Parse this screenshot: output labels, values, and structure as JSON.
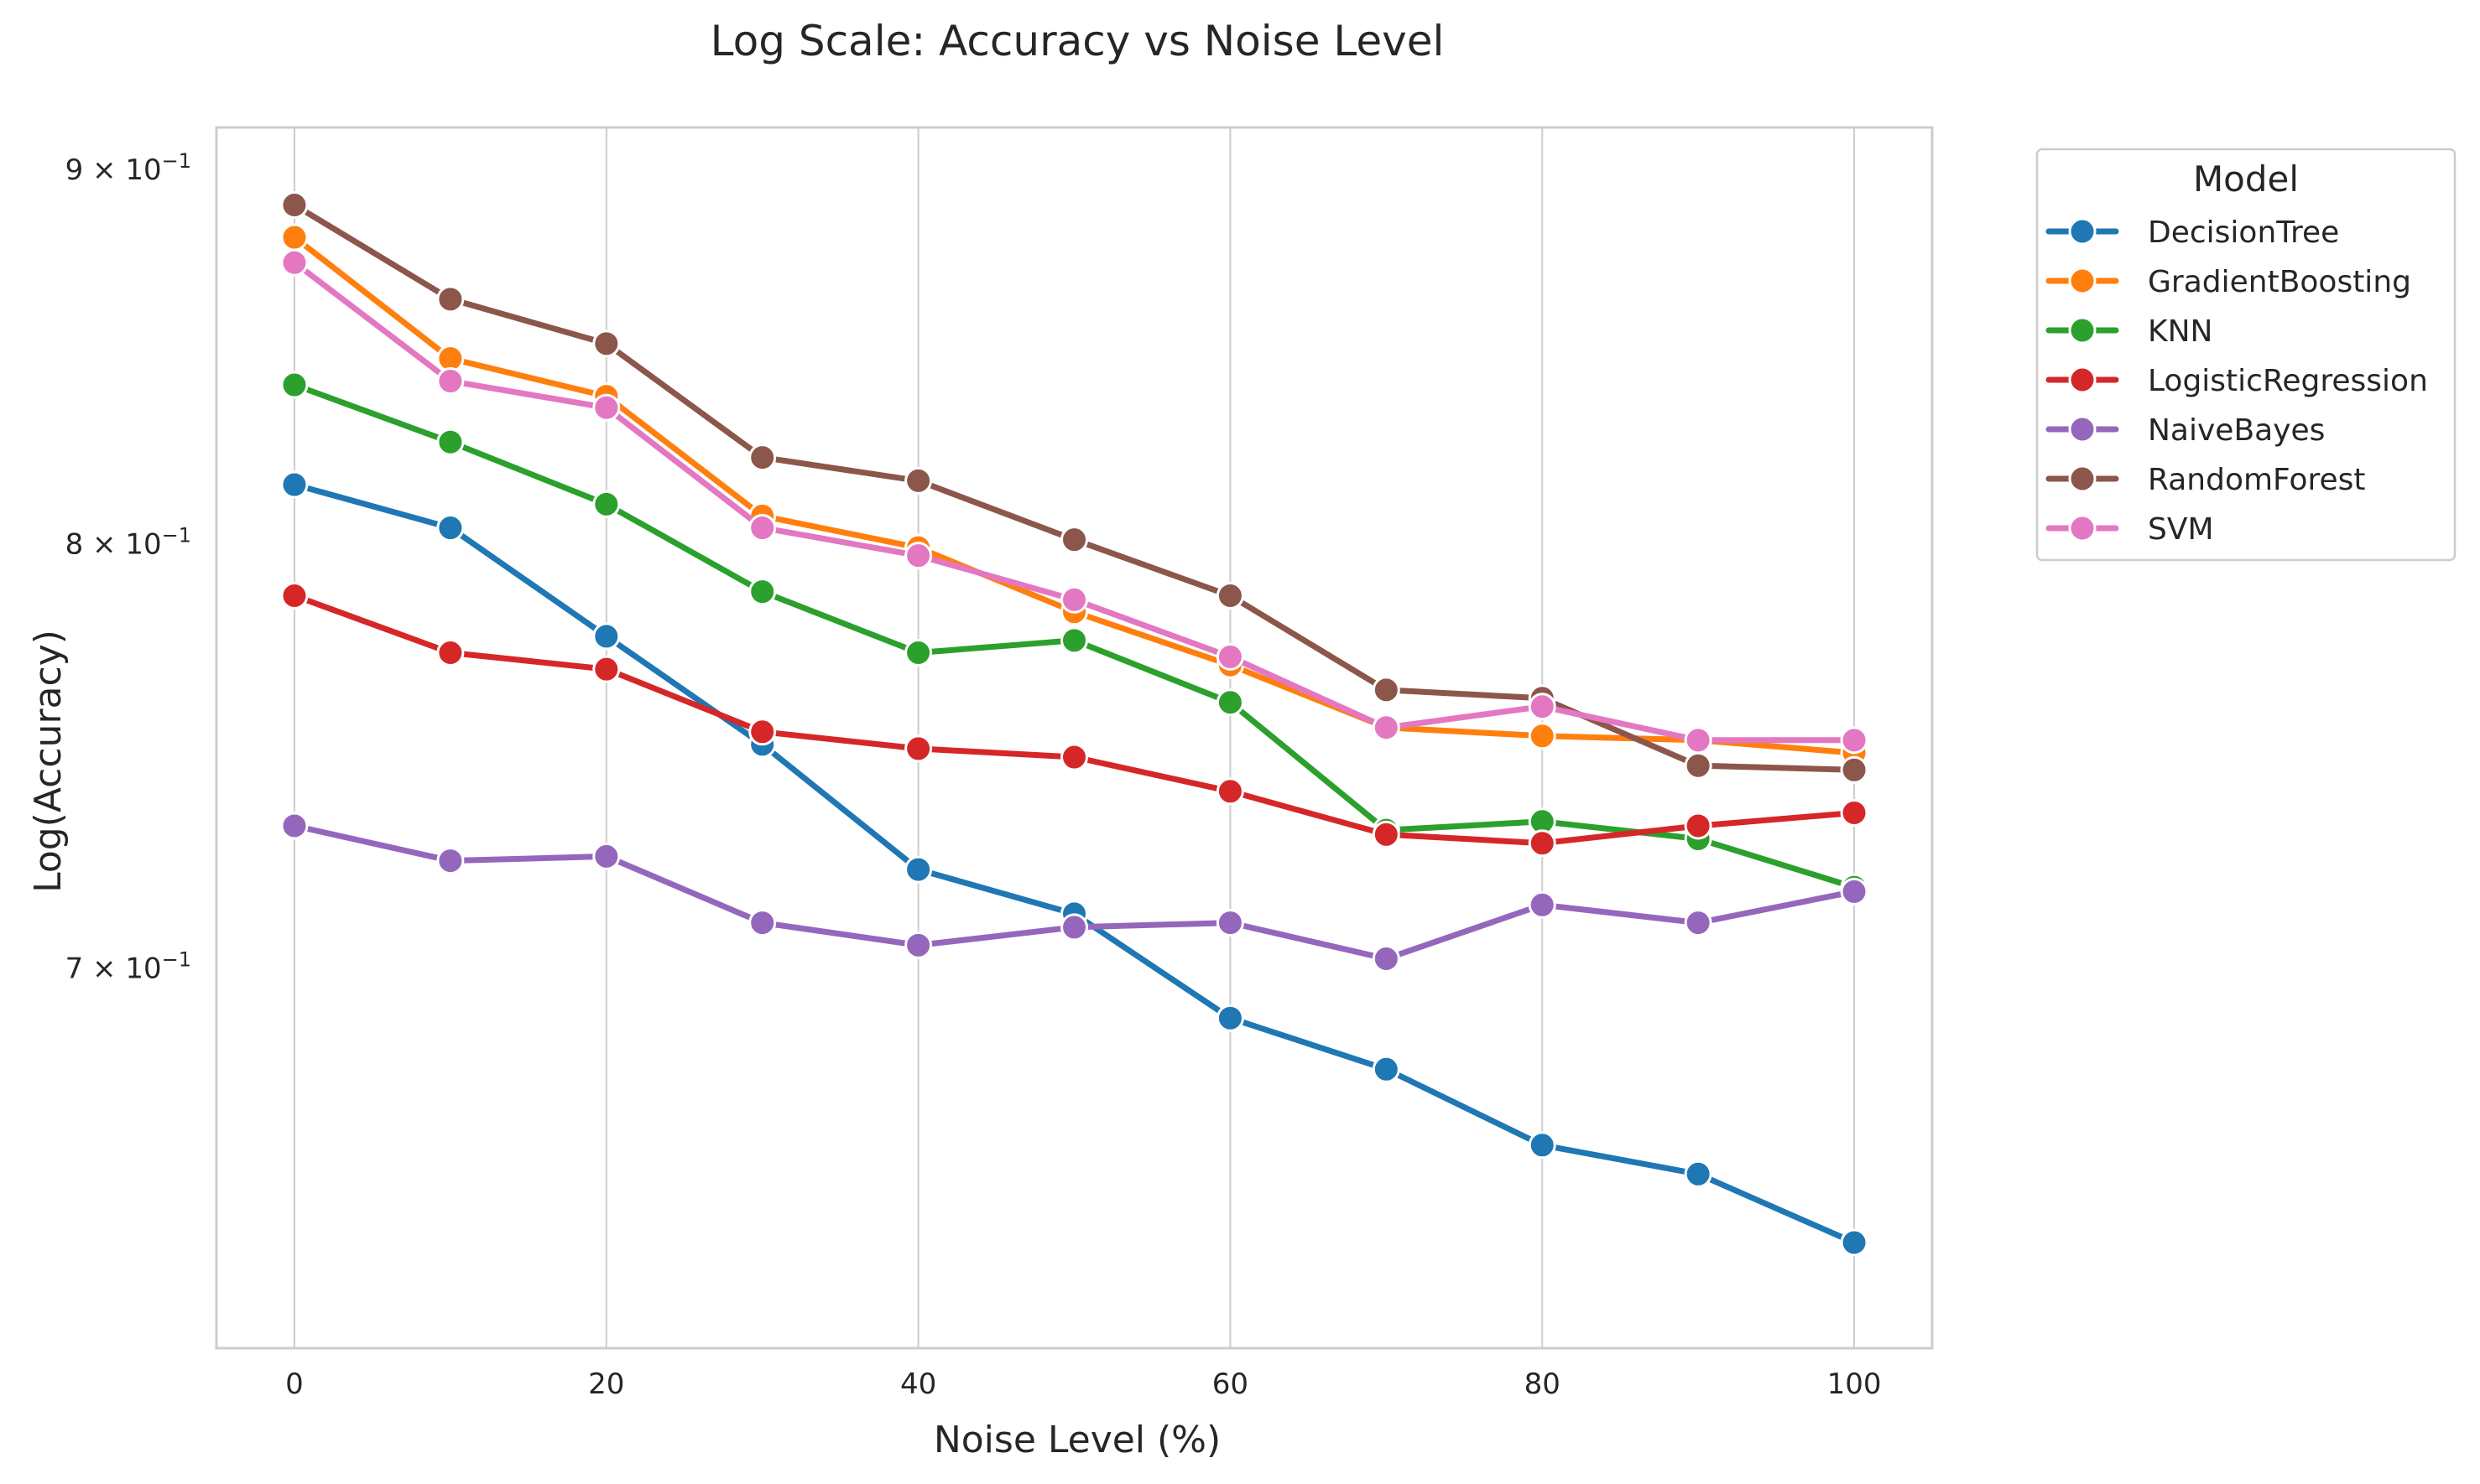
{
  "chart_data": {
    "type": "line",
    "title": "Log Scale: Accuracy vs Noise Level",
    "xlabel": "Noise Level (%)",
    "ylabel": "Log(Accuracy)",
    "yscale": "log",
    "x": [
      0,
      10,
      20,
      30,
      40,
      50,
      60,
      70,
      80,
      90,
      100
    ],
    "xlim": [
      -5,
      105
    ],
    "ylim": [
      0.621,
      0.912
    ],
    "x_ticks": [
      0,
      20,
      40,
      60,
      80,
      100
    ],
    "x_tick_labels": [
      "0",
      "20",
      "40",
      "60",
      "80",
      "100"
    ],
    "y_ticks": [
      0.9,
      0.8,
      0.7
    ],
    "y_tick_labels": [
      {
        "base": "9 × 10",
        "exp": "−1"
      },
      {
        "base": "8 × 10",
        "exp": "−1"
      },
      {
        "base": "7 × 10",
        "exp": "−1"
      }
    ],
    "grid": "vertical",
    "legend": {
      "title": "Model",
      "placement": "outside-top-right"
    },
    "series": [
      {
        "name": "DecisionTree",
        "color": "#1f77b4",
        "values": [
          0.815,
          0.804,
          0.777,
          0.751,
          0.722,
          0.712,
          0.689,
          0.678,
          0.662,
          0.656,
          0.642
        ]
      },
      {
        "name": "GradientBoosting",
        "color": "#ff7f0e",
        "values": [
          0.881,
          0.848,
          0.838,
          0.807,
          0.799,
          0.783,
          0.77,
          0.755,
          0.753,
          0.752,
          0.749
        ]
      },
      {
        "name": "KNN",
        "color": "#2ca02c",
        "values": [
          0.841,
          0.826,
          0.81,
          0.788,
          0.773,
          0.776,
          0.761,
          0.731,
          0.733,
          0.729,
          0.718
        ]
      },
      {
        "name": "LogisticRegression",
        "color": "#d62728",
        "values": [
          0.787,
          0.773,
          0.769,
          0.754,
          0.75,
          0.748,
          0.74,
          0.73,
          0.728,
          0.732,
          0.735
        ]
      },
      {
        "name": "NaiveBayes",
        "color": "#9467bd",
        "values": [
          0.732,
          0.724,
          0.725,
          0.71,
          0.705,
          0.709,
          0.71,
          0.702,
          0.714,
          0.71,
          0.717
        ]
      },
      {
        "name": "RandomForest",
        "color": "#8c564b",
        "values": [
          0.89,
          0.864,
          0.852,
          0.822,
          0.816,
          0.801,
          0.787,
          0.764,
          0.762,
          0.746,
          0.745
        ]
      },
      {
        "name": "SVM",
        "color": "#e377c2",
        "values": [
          0.874,
          0.842,
          0.835,
          0.804,
          0.797,
          0.786,
          0.772,
          0.755,
          0.76,
          0.752,
          0.752
        ]
      }
    ]
  }
}
